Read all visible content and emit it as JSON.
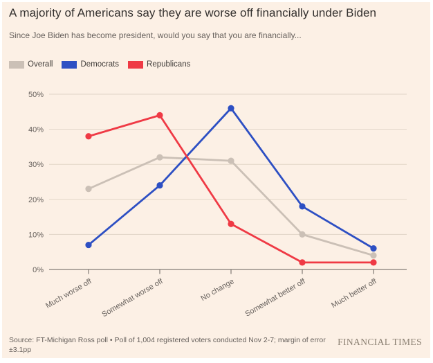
{
  "header": {
    "title": "A majority of Americans say they are worse off financially under Biden",
    "subtitle": "Since Joe Biden has become president, would you say that you are financially..."
  },
  "chart_data": {
    "type": "line",
    "categories": [
      "Much worse off",
      "Somewhat worse off",
      "No change",
      "Somewhat better off",
      "Much better off"
    ],
    "series": [
      {
        "name": "Overall",
        "color": "#CBC0B6",
        "values": [
          23,
          32,
          31,
          10,
          4
        ]
      },
      {
        "name": "Democrats",
        "color": "#2D4FC3",
        "values": [
          7,
          24,
          46,
          18,
          6
        ]
      },
      {
        "name": "Republicans",
        "color": "#EF3A45",
        "values": [
          38,
          44,
          13,
          2,
          2
        ]
      }
    ],
    "title": "A majority of Americans say they are worse off financially under Biden",
    "xlabel": "",
    "ylabel": "",
    "ylim": [
      0,
      50
    ],
    "yticks": [
      "0%",
      "10%",
      "20%",
      "30%",
      "40%",
      "50%"
    ],
    "grid": true,
    "legend_position": "top-left",
    "marker": "circle"
  },
  "footer": {
    "source": "Source: FT-Michigan Ross poll • Poll of 1,004 registered voters conducted Nov 2-7; margin of error ±3.1pp",
    "brand": "FINANCIAL TIMES"
  },
  "colors": {
    "background": "#FCF0E5",
    "title_text": "#33302E",
    "muted_text": "#66605C",
    "gridline": "#E1D5C7",
    "axis": "#66605C"
  }
}
